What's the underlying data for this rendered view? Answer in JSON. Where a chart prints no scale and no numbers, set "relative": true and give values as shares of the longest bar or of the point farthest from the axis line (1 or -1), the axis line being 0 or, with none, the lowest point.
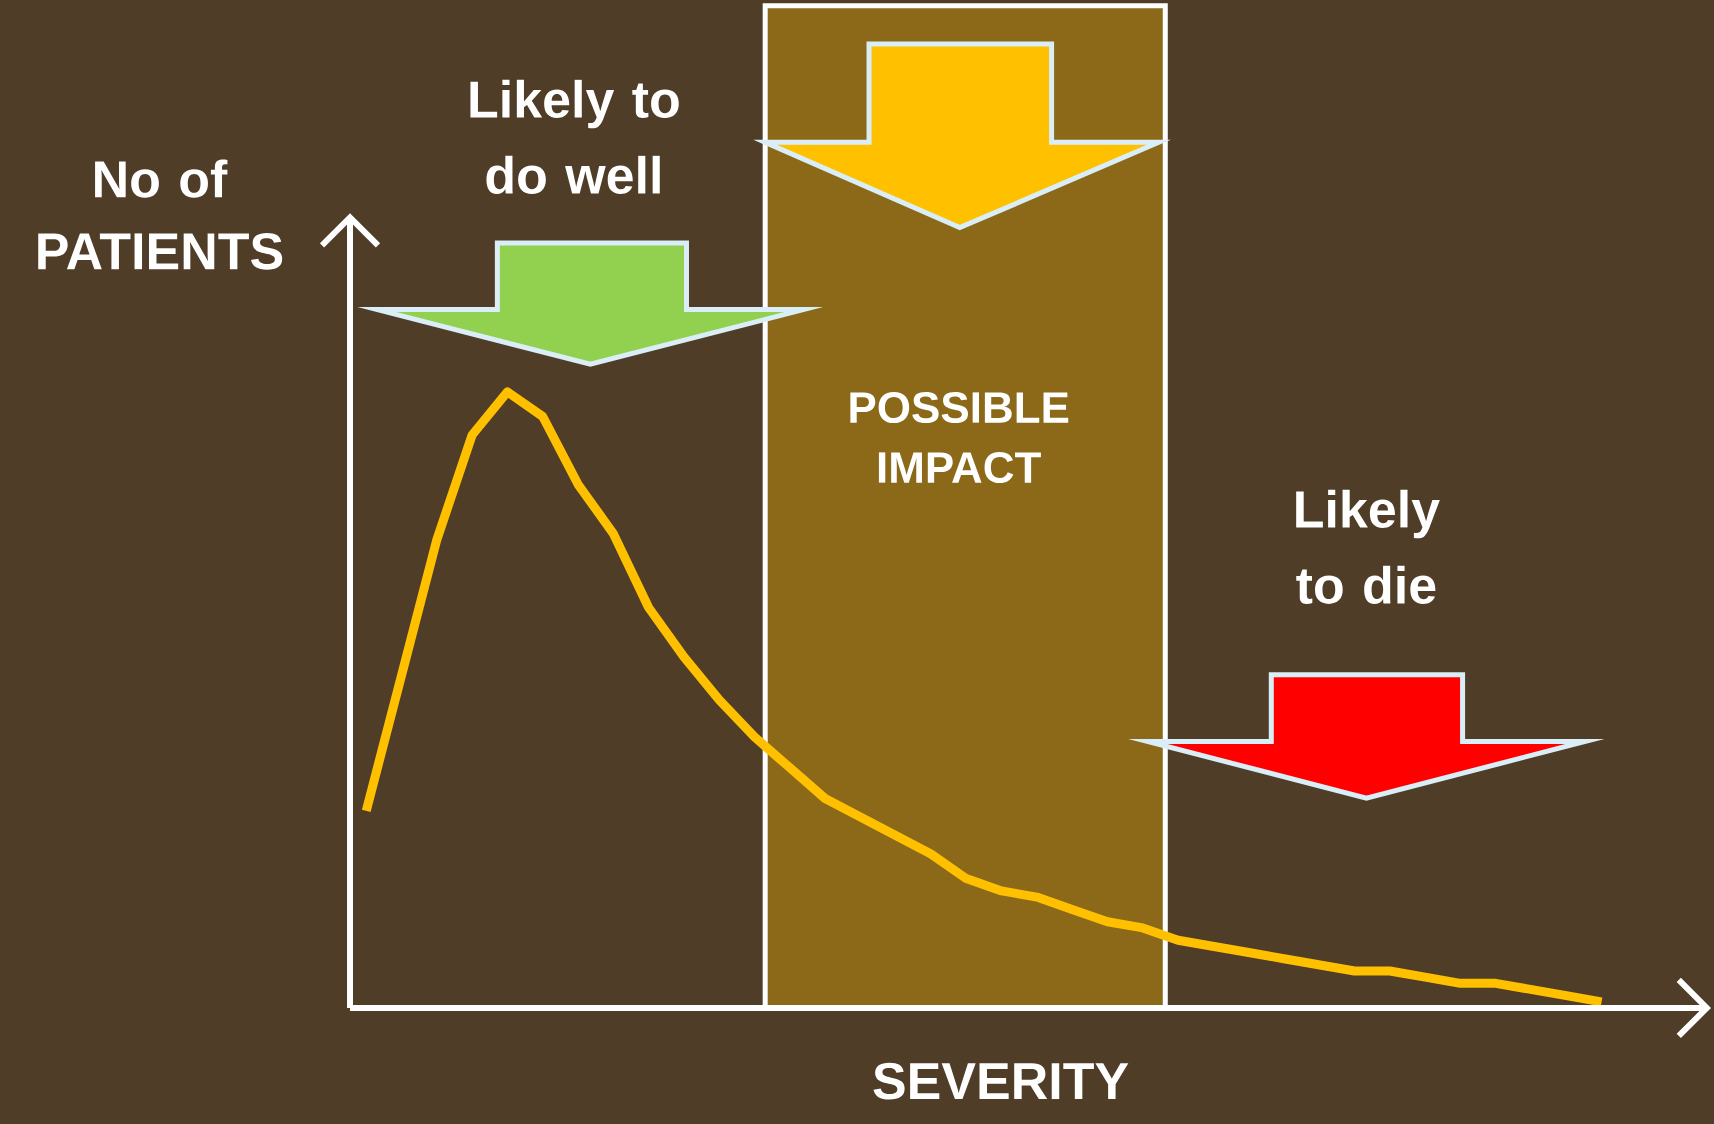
{
  "chart_data": {
    "type": "line",
    "relative": true,
    "xlabel": "SEVERITY",
    "ylabel": "No of PATIENTS",
    "categories": [
      null,
      null,
      null,
      null,
      null,
      null,
      null,
      null,
      null,
      null,
      null,
      null,
      null,
      null,
      null,
      null,
      null,
      null,
      null,
      null,
      null,
      null,
      null,
      null,
      null,
      null,
      null,
      null,
      null,
      null,
      null,
      null,
      null,
      null,
      null,
      null
    ],
    "series": [
      {
        "color": "#FFC000",
        "values": [
          0.32,
          0.54,
          0.76,
          0.93,
          1,
          0.96,
          0.85,
          0.77,
          0.65,
          0.57,
          0.5,
          0.44,
          0.39,
          0.34,
          0.31,
          0.28,
          0.25,
          0.21,
          0.19,
          0.18,
          0.16,
          0.14,
          0.13,
          0.11,
          0.1,
          0.09,
          0.08,
          0.07,
          0.06,
          0.06,
          0.05,
          0.04,
          0.04,
          0.03,
          0.02,
          0.01
        ]
      }
    ],
    "annotations": [
      "Likely to do well",
      "Likely to die",
      "POSSIBLE IMPACT"
    ]
  }
}
